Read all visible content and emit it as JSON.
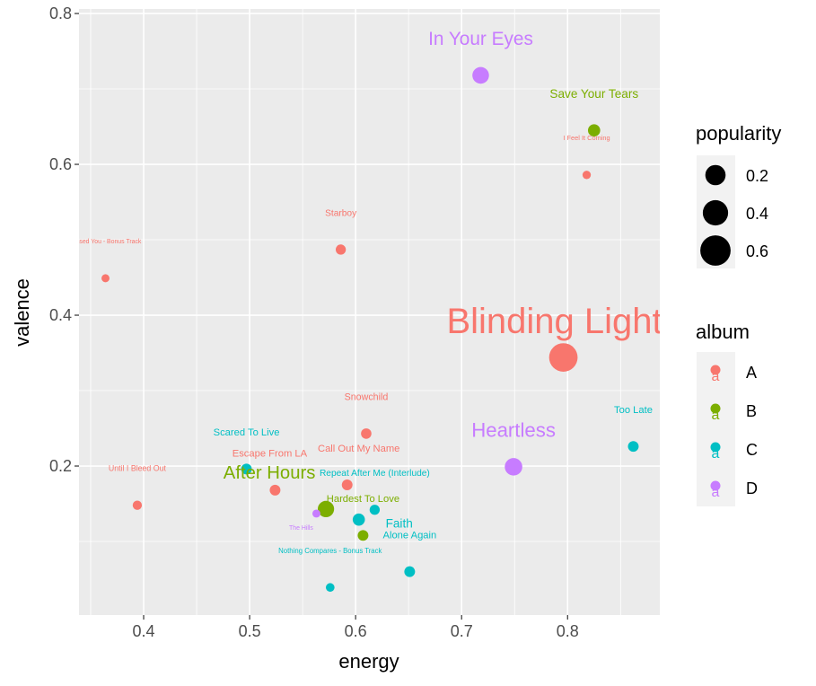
{
  "chart_data": {
    "type": "scatter",
    "xlabel": "energy",
    "ylabel": "valence",
    "xlim": [
      0.339,
      0.887
    ],
    "ylim": [
      0.0024,
      0.806
    ],
    "xticks": [
      "0.4",
      "0.5",
      "0.6",
      "0.7",
      "0.8"
    ],
    "xtick_values": [
      0.4,
      0.5,
      0.6,
      0.7,
      0.8
    ],
    "yticks": [
      "0.2",
      "0.4",
      "0.6",
      "0.8"
    ],
    "ytick_values": [
      0.2,
      0.4,
      0.6,
      0.8
    ],
    "grid": true,
    "colors": {
      "A": "#F8766D",
      "B": "#7CAE00",
      "C": "#00BFC4",
      "D": "#C77CFF"
    },
    "points": [
      {
        "label": "In Your Eyes",
        "energy": 0.718,
        "valence": 0.718,
        "album": "D",
        "popularity": 0.35
      },
      {
        "label": "Save Your Tears",
        "energy": 0.825,
        "valence": 0.645,
        "album": "B",
        "popularity": 0.2
      },
      {
        "label": "I Feel It Coming",
        "energy": 0.818,
        "valence": 0.586,
        "album": "A",
        "popularity": 0.07
      },
      {
        "label": "Starboy",
        "energy": 0.586,
        "valence": 0.487,
        "album": "A",
        "popularity": 0.13
      },
      {
        "label": "Missed You - Bonus Track",
        "energy": 0.364,
        "valence": 0.449,
        "album": "A",
        "popularity": 0.06
      },
      {
        "label": "Blinding Lights",
        "energy": 0.796,
        "valence": 0.344,
        "album": "A",
        "popularity": 0.75
      },
      {
        "label": "Snowchild",
        "energy": 0.61,
        "valence": 0.243,
        "album": "A",
        "popularity": 0.14
      },
      {
        "label": "Too Late",
        "energy": 0.862,
        "valence": 0.226,
        "album": "C",
        "popularity": 0.15
      },
      {
        "label": "Heartless",
        "energy": 0.749,
        "valence": 0.199,
        "album": "D",
        "popularity": 0.38
      },
      {
        "label": "Scared To Live",
        "energy": 0.497,
        "valence": 0.196,
        "album": "C",
        "popularity": 0.15
      },
      {
        "label": "Call Out My Name",
        "energy": 0.592,
        "valence": 0.175,
        "album": "A",
        "popularity": 0.15
      },
      {
        "label": "Escape From LA",
        "energy": 0.524,
        "valence": 0.168,
        "album": "A",
        "popularity": 0.15
      },
      {
        "label": "Until I Bleed Out",
        "energy": 0.394,
        "valence": 0.148,
        "album": "A",
        "popularity": 0.1
      },
      {
        "label": "After Hours",
        "energy": 0.572,
        "valence": 0.143,
        "album": "B",
        "popularity": 0.34
      },
      {
        "label": "Repeat After Me (Interlude)",
        "energy": 0.618,
        "valence": 0.142,
        "album": "C",
        "popularity": 0.13
      },
      {
        "label": "Faith",
        "energy": 0.603,
        "valence": 0.129,
        "album": "C",
        "popularity": 0.2
      },
      {
        "label": "Hardest To Love",
        "energy": 0.607,
        "valence": 0.108,
        "album": "B",
        "popularity": 0.15
      },
      {
        "label": "The Hills",
        "energy": 0.563,
        "valence": 0.137,
        "album": "D",
        "popularity": 0.06
      },
      {
        "label": "Alone Again",
        "energy": 0.651,
        "valence": 0.06,
        "album": "C",
        "popularity": 0.15
      },
      {
        "label": "Nothing Compares - Bonus Track",
        "energy": 0.576,
        "valence": 0.039,
        "album": "C",
        "popularity": 0.08
      }
    ],
    "legend": {
      "placement": "right",
      "size_title": "popularity",
      "size_entries": [
        {
          "label": "0.2",
          "value": 0.2
        },
        {
          "label": "0.4",
          "value": 0.4
        },
        {
          "label": "0.6",
          "value": 0.6
        }
      ],
      "color_title": "album",
      "color_entries": [
        "A",
        "B",
        "C",
        "D"
      ],
      "key_glyph_text": "a"
    }
  }
}
